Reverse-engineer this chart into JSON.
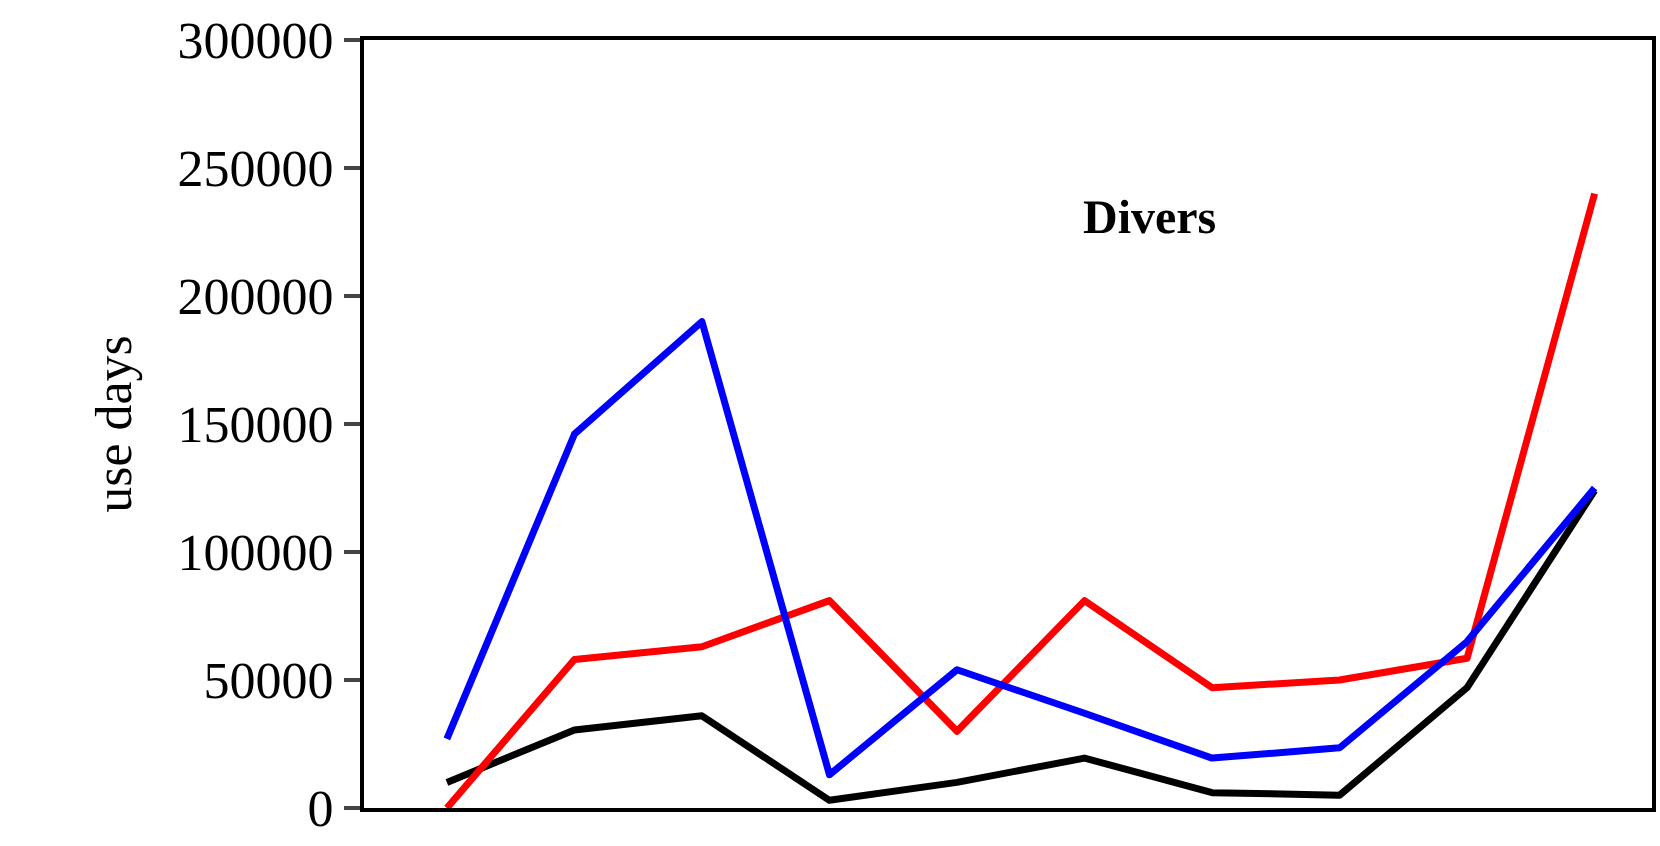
{
  "chart_data": {
    "type": "line",
    "title": "Divers",
    "ylabel": "use days",
    "categories": [
      null,
      null,
      null,
      null,
      null,
      null,
      null,
      null,
      null,
      null
    ],
    "series": [
      {
        "color": "#000000",
        "values": [
          10000,
          30500,
          36000,
          3000,
          10000,
          19500,
          6000,
          5000,
          47000,
          124000
        ]
      },
      {
        "color": "#ff0000",
        "values": [
          0,
          58000,
          63000,
          81000,
          30000,
          81000,
          47000,
          50000,
          58500,
          240000
        ]
      },
      {
        "color": "#0000ff",
        "values": [
          27000,
          146000,
          190000,
          13000,
          54000,
          37000,
          19500,
          23500,
          65000,
          125000
        ]
      }
    ],
    "ylim": [
      0,
      300000
    ],
    "yticks": [
      0,
      50000,
      100000,
      150000,
      200000,
      250000,
      300000
    ],
    "marker": "none",
    "line_style": "solid"
  }
}
